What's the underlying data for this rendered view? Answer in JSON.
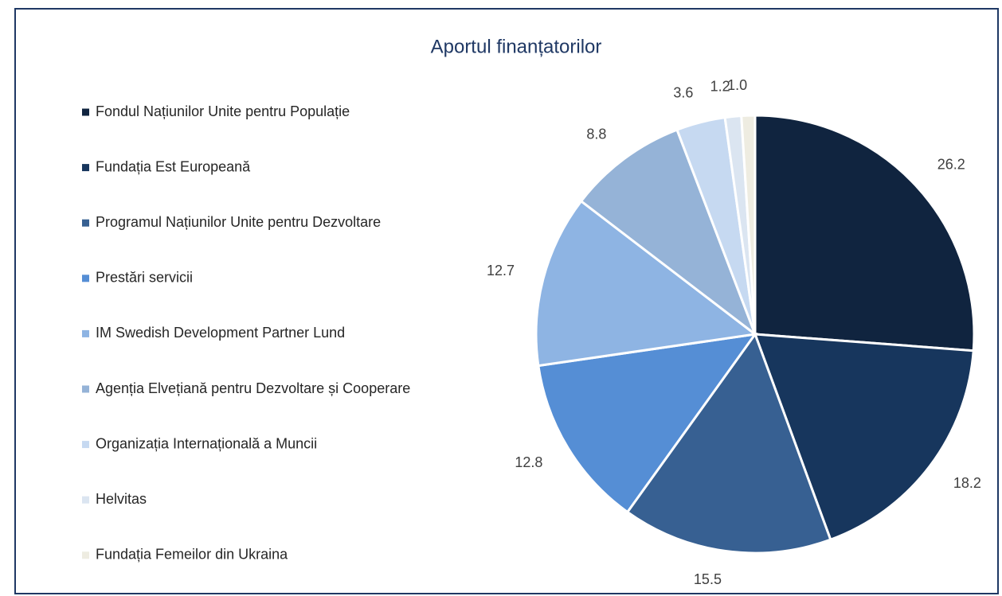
{
  "chart_data": {
    "type": "pie",
    "title": "Aportul finanțatorilor",
    "categories": [
      "Fondul Națiunilor Unite pentru Populație",
      "Fundația Est Europeană",
      "Programul Națiunilor Unite pentru Dezvoltare",
      "Prestări servicii",
      "IM Swedish Development Partner Lund",
      "Agenția Elvețiană pentru Dezvoltare și Cooperare",
      "Organizația Internațională a Muncii",
      "Helvitas",
      "Fundația Femeilor din Ukraina"
    ],
    "values": [
      26.2,
      18.2,
      15.5,
      12.8,
      12.7,
      8.8,
      3.6,
      1.2,
      1.0
    ],
    "value_labels": [
      "26.2",
      "18.2",
      "15.5",
      "12.8",
      "12.7",
      "8.8",
      "3.6",
      "1.2",
      "1.0"
    ],
    "colors": [
      "#10243f",
      "#17365d",
      "#376092",
      "#558ed5",
      "#8eb4e3",
      "#95b3d7",
      "#c6d9f1",
      "#dbe5f1",
      "#eeece1"
    ],
    "legend": "left"
  }
}
